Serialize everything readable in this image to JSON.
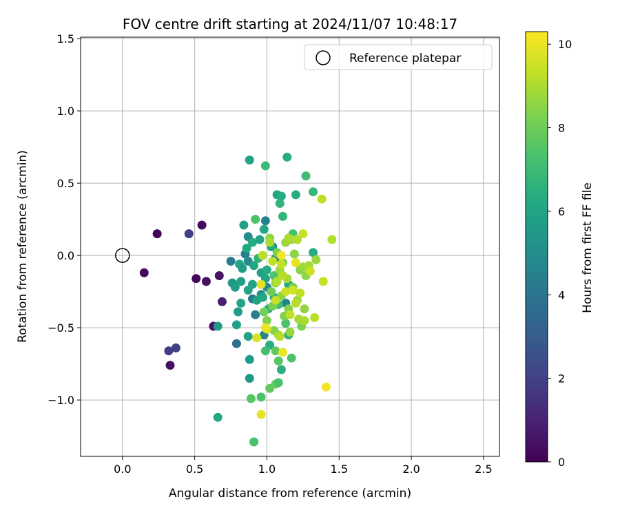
{
  "chart_data": {
    "type": "scatter",
    "title": "FOV centre drift starting at 2024/11/07 10:48:17",
    "xlabel": "Angular distance from reference (arcmin)",
    "ylabel": "Rotation from reference (arcmin)",
    "colorbar_label": "Hours from first FF file",
    "xlim": [
      -0.29,
      2.61
    ],
    "ylim": [
      -1.39,
      1.51
    ],
    "xticks": [
      0.0,
      0.5,
      1.0,
      1.5,
      2.0,
      2.5
    ],
    "xtick_labels": [
      "0.0",
      "0.5",
      "1.0",
      "1.5",
      "2.0",
      "2.5"
    ],
    "yticks": [
      -1.0,
      -0.5,
      0.0,
      0.5,
      1.0,
      1.5
    ],
    "ytick_labels": [
      "−1.0",
      "−0.5",
      "0.0",
      "0.5",
      "1.0",
      "1.5"
    ],
    "colorbar_range": [
      0,
      10.3
    ],
    "colorbar_ticks": [
      0,
      2,
      4,
      6,
      8,
      10
    ],
    "colorbar_tick_labels": [
      "0",
      "2",
      "4",
      "6",
      "8",
      "10"
    ],
    "colormap": "viridis",
    "grid": true,
    "legend": {
      "position": "top-right",
      "label": "Reference platepar"
    },
    "reference_point": {
      "x": 0.0,
      "y": 0.0
    },
    "series": [
      {
        "points": [
          {
            "x": 0.24,
            "y": 0.15,
            "h": 0.1
          },
          {
            "x": 0.15,
            "y": -0.12,
            "h": 0.2
          },
          {
            "x": 0.55,
            "y": 0.21,
            "h": 0.3
          },
          {
            "x": 0.51,
            "y": -0.16,
            "h": 0.2
          },
          {
            "x": 0.58,
            "y": -0.18,
            "h": 0.4
          },
          {
            "x": 0.67,
            "y": -0.14,
            "h": 0.5
          },
          {
            "x": 0.69,
            "y": -0.32,
            "h": 0.9
          },
          {
            "x": 0.63,
            "y": -0.49,
            "h": 0.5
          },
          {
            "x": 0.33,
            "y": -0.76,
            "h": 0.4
          },
          {
            "x": 0.32,
            "y": -0.66,
            "h": 1.8
          },
          {
            "x": 0.37,
            "y": -0.64,
            "h": 1.9
          },
          {
            "x": 0.46,
            "y": 0.15,
            "h": 2.0
          },
          {
            "x": 0.75,
            "y": -0.04,
            "h": 4.3
          },
          {
            "x": 0.79,
            "y": -0.61,
            "h": 3.7
          },
          {
            "x": 0.85,
            "y": 0.01,
            "h": 4.5
          },
          {
            "x": 0.87,
            "y": 0.13,
            "h": 4.8
          },
          {
            "x": 0.87,
            "y": -0.04,
            "h": 5.0
          },
          {
            "x": 0.9,
            "y": -0.3,
            "h": 4.2
          },
          {
            "x": 0.92,
            "y": -0.41,
            "h": 4.4
          },
          {
            "x": 0.96,
            "y": -0.27,
            "h": 4.9
          },
          {
            "x": 0.99,
            "y": 0.24,
            "h": 4.5
          },
          {
            "x": 0.98,
            "y": -0.55,
            "h": 4.6
          },
          {
            "x": 1.0,
            "y": -0.22,
            "h": 4.7
          },
          {
            "x": 1.04,
            "y": 0.06,
            "h": 4.4
          },
          {
            "x": 1.06,
            "y": -0.02,
            "h": 4.8
          },
          {
            "x": 1.13,
            "y": -0.33,
            "h": 4.6
          },
          {
            "x": 0.66,
            "y": -1.12,
            "h": 6.2
          },
          {
            "x": 0.66,
            "y": -0.49,
            "h": 5.6
          },
          {
            "x": 0.76,
            "y": -0.19,
            "h": 5.5
          },
          {
            "x": 0.78,
            "y": -0.22,
            "h": 5.7
          },
          {
            "x": 0.79,
            "y": -0.48,
            "h": 5.8
          },
          {
            "x": 0.8,
            "y": -0.39,
            "h": 5.7
          },
          {
            "x": 0.81,
            "y": -0.06,
            "h": 6.1
          },
          {
            "x": 0.82,
            "y": -0.18,
            "h": 5.8
          },
          {
            "x": 0.82,
            "y": -0.33,
            "h": 6.0
          },
          {
            "x": 0.83,
            "y": -0.09,
            "h": 5.7
          },
          {
            "x": 0.84,
            "y": 0.21,
            "h": 5.8
          },
          {
            "x": 0.86,
            "y": 0.05,
            "h": 6.2
          },
          {
            "x": 0.87,
            "y": -0.24,
            "h": 6.0
          },
          {
            "x": 0.87,
            "y": -0.56,
            "h": 5.9
          },
          {
            "x": 0.88,
            "y": -0.72,
            "h": 5.6
          },
          {
            "x": 0.88,
            "y": -0.85,
            "h": 5.5
          },
          {
            "x": 0.88,
            "y": 0.66,
            "h": 6.0
          },
          {
            "x": 0.9,
            "y": 0.09,
            "h": 6.3
          },
          {
            "x": 0.9,
            "y": -0.2,
            "h": 5.9
          },
          {
            "x": 0.91,
            "y": -0.07,
            "h": 6.1
          },
          {
            "x": 0.93,
            "y": -0.31,
            "h": 6.0
          },
          {
            "x": 0.94,
            "y": -0.02,
            "h": 6.6
          },
          {
            "x": 0.95,
            "y": 0.11,
            "h": 6.0
          },
          {
            "x": 0.96,
            "y": -0.12,
            "h": 5.8
          },
          {
            "x": 0.97,
            "y": -0.29,
            "h": 6.2
          },
          {
            "x": 0.98,
            "y": 0.18,
            "h": 6.2
          },
          {
            "x": 0.99,
            "y": -0.16,
            "h": 6.0
          },
          {
            "x": 1.0,
            "y": -0.1,
            "h": 6.3
          },
          {
            "x": 1.01,
            "y": -0.37,
            "h": 6.4
          },
          {
            "x": 1.02,
            "y": -0.62,
            "h": 6.4
          },
          {
            "x": 1.03,
            "y": 0.06,
            "h": 6.2
          },
          {
            "x": 1.05,
            "y": -0.29,
            "h": 6.5
          },
          {
            "x": 1.07,
            "y": 0.42,
            "h": 6.1
          },
          {
            "x": 1.09,
            "y": 0.36,
            "h": 6.7
          },
          {
            "x": 1.1,
            "y": 0.41,
            "h": 6.3
          },
          {
            "x": 1.1,
            "y": -0.79,
            "h": 6.5
          },
          {
            "x": 1.11,
            "y": 0.27,
            "h": 6.7
          },
          {
            "x": 1.14,
            "y": 0.68,
            "h": 6.4
          },
          {
            "x": 1.15,
            "y": -0.2,
            "h": 6.2
          },
          {
            "x": 1.15,
            "y": -0.55,
            "h": 6.6
          },
          {
            "x": 1.2,
            "y": 0.42,
            "h": 6.4
          },
          {
            "x": 1.32,
            "y": 0.02,
            "h": 6.3
          },
          {
            "x": 0.91,
            "y": -1.29,
            "h": 7.3
          },
          {
            "x": 0.89,
            "y": -0.99,
            "h": 7.6
          },
          {
            "x": 0.96,
            "y": -0.98,
            "h": 7.4
          },
          {
            "x": 0.99,
            "y": 0.62,
            "h": 7.0
          },
          {
            "x": 0.92,
            "y": 0.25,
            "h": 7.4
          },
          {
            "x": 0.99,
            "y": -0.66,
            "h": 7.2
          },
          {
            "x": 1.02,
            "y": -0.92,
            "h": 7.8
          },
          {
            "x": 1.06,
            "y": -0.89,
            "h": 7.9
          },
          {
            "x": 1.08,
            "y": -0.88,
            "h": 7.3
          },
          {
            "x": 1.08,
            "y": -0.73,
            "h": 7.6
          },
          {
            "x": 1.06,
            "y": -0.66,
            "h": 7.8
          },
          {
            "x": 1.17,
            "y": -0.71,
            "h": 7.4
          },
          {
            "x": 1.27,
            "y": 0.55,
            "h": 7.1
          },
          {
            "x": 1.32,
            "y": 0.44,
            "h": 6.8
          },
          {
            "x": 1.18,
            "y": 0.15,
            "h": 7.2
          },
          {
            "x": 1.05,
            "y": -0.14,
            "h": 7.4
          },
          {
            "x": 1.08,
            "y": -0.34,
            "h": 7.1
          },
          {
            "x": 1.13,
            "y": -0.47,
            "h": 7.3
          },
          {
            "x": 0.98,
            "y": -0.39,
            "h": 8.1
          },
          {
            "x": 1.0,
            "y": -0.45,
            "h": 8.3
          },
          {
            "x": 1.02,
            "y": 0.12,
            "h": 8.5
          },
          {
            "x": 1.03,
            "y": -0.25,
            "h": 8.0
          },
          {
            "x": 1.04,
            "y": -0.35,
            "h": 8.2
          },
          {
            "x": 1.05,
            "y": -0.52,
            "h": 8.4
          },
          {
            "x": 1.06,
            "y": -0.19,
            "h": 8.6
          },
          {
            "x": 1.07,
            "y": 0.02,
            "h": 8.3
          },
          {
            "x": 1.08,
            "y": -0.55,
            "h": 8.7
          },
          {
            "x": 1.09,
            "y": -0.1,
            "h": 8.8
          },
          {
            "x": 1.1,
            "y": -0.28,
            "h": 8.5
          },
          {
            "x": 1.11,
            "y": -0.05,
            "h": 8.1
          },
          {
            "x": 1.12,
            "y": -0.42,
            "h": 8.3
          },
          {
            "x": 1.13,
            "y": 0.09,
            "h": 8.7
          },
          {
            "x": 1.14,
            "y": -0.16,
            "h": 8.9
          },
          {
            "x": 1.15,
            "y": -0.37,
            "h": 8.4
          },
          {
            "x": 1.16,
            "y": -0.53,
            "h": 8.6
          },
          {
            "x": 1.17,
            "y": 0.11,
            "h": 8.8
          },
          {
            "x": 1.18,
            "y": -0.22,
            "h": 8.2
          },
          {
            "x": 1.19,
            "y": 0.01,
            "h": 8.5
          },
          {
            "x": 1.21,
            "y": -0.31,
            "h": 8.7
          },
          {
            "x": 1.22,
            "y": -0.44,
            "h": 8.9
          },
          {
            "x": 1.23,
            "y": -0.1,
            "h": 8.4
          },
          {
            "x": 1.24,
            "y": -0.49,
            "h": 8.3
          },
          {
            "x": 1.25,
            "y": -0.08,
            "h": 8.8
          },
          {
            "x": 1.26,
            "y": -0.37,
            "h": 8.6
          },
          {
            "x": 1.27,
            "y": -0.14,
            "h": 8.5
          },
          {
            "x": 1.29,
            "y": -0.07,
            "h": 8.9
          },
          {
            "x": 1.34,
            "y": -0.03,
            "h": 8.7
          },
          {
            "x": 0.97,
            "y": 0.0,
            "h": 9.2
          },
          {
            "x": 1.0,
            "y": -0.51,
            "h": 9.5
          },
          {
            "x": 1.02,
            "y": 0.09,
            "h": 9.0
          },
          {
            "x": 1.04,
            "y": -0.04,
            "h": 9.3
          },
          {
            "x": 1.06,
            "y": -0.31,
            "h": 9.4
          },
          {
            "x": 1.07,
            "y": -0.18,
            "h": 9.1
          },
          {
            "x": 1.09,
            "y": -0.56,
            "h": 9.2
          },
          {
            "x": 1.1,
            "y": -0.06,
            "h": 9.4
          },
          {
            "x": 1.11,
            "y": -0.14,
            "h": 9.2
          },
          {
            "x": 1.13,
            "y": -0.25,
            "h": 9.5
          },
          {
            "x": 1.15,
            "y": 0.12,
            "h": 9.0
          },
          {
            "x": 1.16,
            "y": -0.41,
            "h": 9.3
          },
          {
            "x": 1.18,
            "y": -0.24,
            "h": 9.6
          },
          {
            "x": 1.2,
            "y": -0.33,
            "h": 9.2
          },
          {
            "x": 1.21,
            "y": 0.11,
            "h": 9.1
          },
          {
            "x": 1.23,
            "y": -0.26,
            "h": 9.3
          },
          {
            "x": 1.25,
            "y": 0.15,
            "h": 9.4
          },
          {
            "x": 1.26,
            "y": -0.45,
            "h": 9.0
          },
          {
            "x": 1.3,
            "y": -0.11,
            "h": 9.5
          },
          {
            "x": 1.33,
            "y": -0.43,
            "h": 9.2
          },
          {
            "x": 1.38,
            "y": 0.39,
            "h": 9.3
          },
          {
            "x": 1.39,
            "y": -0.18,
            "h": 9.4
          },
          {
            "x": 1.45,
            "y": 0.11,
            "h": 9.1
          },
          {
            "x": 0.93,
            "y": -0.57,
            "h": 9.7
          },
          {
            "x": 0.96,
            "y": -1.1,
            "h": 9.9
          },
          {
            "x": 0.96,
            "y": -0.2,
            "h": 9.8
          },
          {
            "x": 0.99,
            "y": -0.5,
            "h": 10.0
          },
          {
            "x": 1.1,
            "y": 0.0,
            "h": 10.1
          },
          {
            "x": 1.11,
            "y": -0.67,
            "h": 10.0
          },
          {
            "x": 1.2,
            "y": -0.05,
            "h": 9.9
          },
          {
            "x": 1.41,
            "y": -0.91,
            "h": 10.1
          }
        ]
      }
    ]
  }
}
